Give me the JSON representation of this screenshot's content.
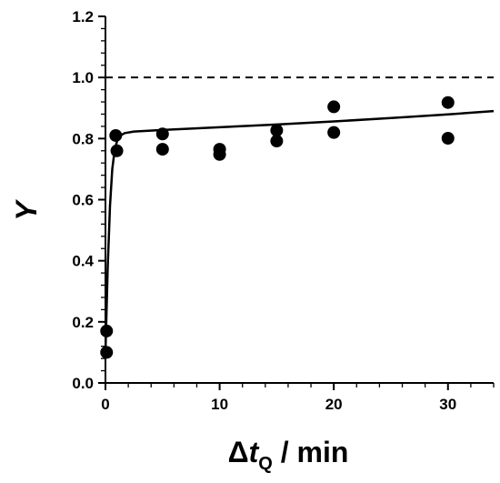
{
  "chart_data": {
    "type": "scatter",
    "title": "",
    "xlabel": {
      "prefix": "Δ",
      "var": "t",
      "sub": "Q",
      "suffix": " / min"
    },
    "ylabel": "Y",
    "xlim": [
      0,
      34
    ],
    "ylim": [
      0,
      1.2
    ],
    "x_ticks": [
      0,
      10,
      20,
      30
    ],
    "y_ticks": [
      0.0,
      0.2,
      0.4,
      0.6,
      0.8,
      1.0,
      1.2
    ],
    "y_tick_labels": [
      "0.0",
      "0.2",
      "0.4",
      "0.6",
      "0.8",
      "1.0",
      "1.2"
    ],
    "x_minor_step": 2,
    "y_minor_step": 0.04,
    "grid": false,
    "legend": "none",
    "reference_line": {
      "y": 1.0,
      "style": "dashed"
    },
    "series": [
      {
        "kind": "points",
        "points": [
          {
            "x": 0.1,
            "y": 0.1
          },
          {
            "x": 0.1,
            "y": 0.17
          },
          {
            "x": 0.9,
            "y": 0.81
          },
          {
            "x": 1.0,
            "y": 0.76
          },
          {
            "x": 5,
            "y": 0.815
          },
          {
            "x": 5,
            "y": 0.765
          },
          {
            "x": 10,
            "y": 0.765
          },
          {
            "x": 10,
            "y": 0.748
          },
          {
            "x": 15,
            "y": 0.827
          },
          {
            "x": 15,
            "y": 0.792
          },
          {
            "x": 20,
            "y": 0.904
          },
          {
            "x": 20,
            "y": 0.82
          },
          {
            "x": 30,
            "y": 0.918
          },
          {
            "x": 30,
            "y": 0.801
          }
        ]
      },
      {
        "kind": "fit-curve",
        "points": [
          {
            "x": 0,
            "y": 0.1
          },
          {
            "x": 0.2,
            "y": 0.38
          },
          {
            "x": 0.4,
            "y": 0.58
          },
          {
            "x": 0.6,
            "y": 0.7
          },
          {
            "x": 0.8,
            "y": 0.76
          },
          {
            "x": 1.0,
            "y": 0.79
          },
          {
            "x": 1.3,
            "y": 0.81
          },
          {
            "x": 1.7,
            "y": 0.818
          },
          {
            "x": 2.5,
            "y": 0.823
          },
          {
            "x": 5,
            "y": 0.828
          },
          {
            "x": 10,
            "y": 0.837
          },
          {
            "x": 15,
            "y": 0.846
          },
          {
            "x": 20,
            "y": 0.856
          },
          {
            "x": 25,
            "y": 0.867
          },
          {
            "x": 30,
            "y": 0.879
          },
          {
            "x": 34,
            "y": 0.89
          }
        ]
      }
    ],
    "colors": {
      "marker": "#000000",
      "line": "#000000"
    }
  }
}
